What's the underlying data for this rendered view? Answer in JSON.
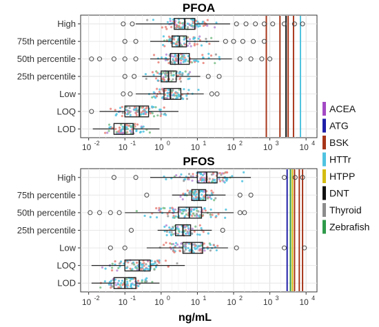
{
  "chart_data": {
    "type": "boxplot",
    "xlabel": "ng/mL",
    "x_scale": "log10",
    "xlim": [
      0.006,
      20000
    ],
    "x_tick_labels": [
      "10",
      "10",
      "10",
      "10",
      "10",
      "10",
      "10"
    ],
    "x_tick_exponents": [
      "-2",
      "-1",
      "0",
      "1",
      "2",
      "3",
      "4"
    ],
    "x_tick_values": [
      0.01,
      0.1,
      1,
      10,
      100,
      1000,
      10000
    ],
    "grid": true,
    "legend_position": "right",
    "categories": [
      "High",
      "75th percentile",
      "50th percentile",
      "25th percentile",
      "Low",
      "LOQ",
      "LOD"
    ],
    "legend": [
      {
        "name": "ACEA",
        "color": "#a349c4"
      },
      {
        "name": "ATG",
        "color": "#1f1fa8"
      },
      {
        "name": "BSK",
        "color": "#a8361a"
      },
      {
        "name": "HTTr",
        "color": "#4fc3e0"
      },
      {
        "name": "HTPP",
        "color": "#d4bc12"
      },
      {
        "name": "DNT",
        "color": "#111111"
      },
      {
        "name": "Thyroid",
        "color": "#8c8c8c"
      },
      {
        "name": "Zebrafish",
        "color": "#2f9a4a"
      }
    ],
    "panels": [
      {
        "title": "PFOA",
        "boxes": [
          {
            "category": "High",
            "q1": 2.3,
            "median": 4.5,
            "q3": 8.5,
            "wlo": 0.2,
            "whi": 80,
            "out_lo": [
              0.09,
              0.16
            ],
            "out_hi": [
              120,
              220,
              400,
              700,
              1200,
              2500,
              4800,
              8000
            ]
          },
          {
            "category": "75th percentile",
            "q1": 2.0,
            "median": 3.2,
            "q3": 5.0,
            "wlo": 0.5,
            "whi": 40,
            "out_lo": [
              0.1,
              0.2
            ],
            "out_hi": [
              60,
              100,
              180,
              350,
              700
            ]
          },
          {
            "category": "50th percentile",
            "q1": 1.8,
            "median": 3.0,
            "q3": 6.0,
            "wlo": 0.5,
            "whi": 90,
            "out_lo": [
              0.012,
              0.02,
              0.05,
              0.1,
              0.2
            ],
            "out_hi": [
              150,
              300,
              600,
              1000
            ]
          },
          {
            "category": "25th percentile",
            "q1": 1.0,
            "median": 1.6,
            "q3": 2.6,
            "wlo": 0.3,
            "whi": 12,
            "out_lo": [
              0.1,
              0.18
            ],
            "out_hi": [
              20,
              40
            ]
          },
          {
            "category": "Low",
            "q1": 1.2,
            "median": 1.8,
            "q3": 3.5,
            "wlo": 0.2,
            "whi": 15,
            "out_lo": [
              0.09,
              0.14
            ],
            "out_hi": [
              25,
              35
            ]
          },
          {
            "category": "LOQ",
            "q1": 0.1,
            "median": 0.25,
            "q3": 0.45,
            "wlo": 0.02,
            "whi": 3.0,
            "out_lo": [
              0.012
            ],
            "out_hi": []
          },
          {
            "category": "LOD",
            "q1": 0.05,
            "median": 0.1,
            "q3": 0.17,
            "wlo": 0.013,
            "whi": 0.9,
            "out_lo": [],
            "out_hi": []
          }
        ],
        "thresholds": [
          {
            "assay": "BSK",
            "value": 800
          },
          {
            "assay": "BSK",
            "value": 1900
          },
          {
            "assay": "DNT",
            "value": 2800
          },
          {
            "assay": "BSK",
            "value": 3200
          },
          {
            "assay": "BSK",
            "value": 4500
          },
          {
            "assay": "HTTr",
            "value": 7000
          }
        ]
      },
      {
        "title": "PFOS",
        "boxes": [
          {
            "category": "High",
            "q1": 10,
            "median": 18,
            "q3": 35,
            "wlo": 0.5,
            "whi": 300,
            "out_lo": [
              0.05,
              0.2
            ],
            "out_hi": [
              2500,
              5000,
              8000
            ]
          },
          {
            "category": "75th percentile",
            "q1": 7,
            "median": 11,
            "q3": 17,
            "wlo": 2,
            "whi": 60,
            "out_lo": [
              0.4
            ],
            "out_hi": [
              150,
              300
            ]
          },
          {
            "category": "50th percentile",
            "q1": 3,
            "median": 6,
            "q3": 13,
            "wlo": 0.1,
            "whi": 100,
            "out_lo": [
              0.011,
              0.02,
              0.04,
              0.07
            ],
            "out_hi": [
              150,
              200
            ]
          },
          {
            "category": "25th percentile",
            "q1": 2.5,
            "median": 4.0,
            "q3": 6.5,
            "wlo": 0.8,
            "whi": 25,
            "out_lo": [
              0.15
            ],
            "out_hi": [
              50
            ]
          },
          {
            "category": "Low",
            "q1": 4,
            "median": 7,
            "q3": 14,
            "wlo": 0.4,
            "whi": 70,
            "out_lo": [
              0.04,
              0.1
            ],
            "out_hi": [
              120,
              2500,
              9000
            ]
          },
          {
            "category": "LOQ",
            "q1": 0.1,
            "median": 0.25,
            "q3": 0.5,
            "wlo": 0.012,
            "whi": 4.5,
            "out_lo": [],
            "out_hi": []
          },
          {
            "category": "LOD",
            "q1": 0.05,
            "median": 0.1,
            "q3": 0.2,
            "wlo": 0.012,
            "whi": 0.9,
            "out_lo": [],
            "out_hi": []
          }
        ],
        "thresholds": [
          {
            "assay": "ATG",
            "value": 3000
          },
          {
            "assay": "Zebrafish",
            "value": 3700
          },
          {
            "assay": "HTPP",
            "value": 4200
          },
          {
            "assay": "BSK",
            "value": 4800
          },
          {
            "assay": "BSK",
            "value": 6500
          },
          {
            "assay": "BSK",
            "value": 8000
          }
        ]
      }
    ]
  }
}
